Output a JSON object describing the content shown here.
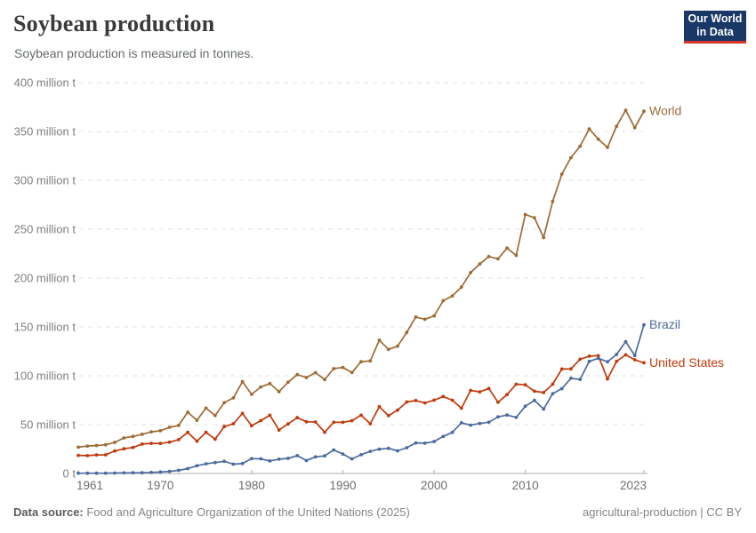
{
  "header": {
    "title": "Soybean production",
    "subtitle": "Soybean production is measured in tonnes.",
    "logo": {
      "line1": "Our World",
      "line2": "in Data"
    }
  },
  "footer": {
    "source_label": "Data source:",
    "source_text": "Food and Agriculture Organization of the United Nations (2025)",
    "rights": "agricultural-production | CC BY"
  },
  "colors": {
    "logo_background": "#1a3866",
    "logo_accent": "#d7352c",
    "grid": "#e0e0e0",
    "axis": "#adadad",
    "axis_text": "#7f7f7f",
    "title_text": "#3a3a3a",
    "subtitle_text": "#666b6e"
  },
  "chart_data": {
    "type": "line",
    "title": "Soybean production",
    "unit": "tonnes",
    "ylabel": "",
    "xlabel": "",
    "grid": "horizontal-dashed",
    "legend_position": "end-of-line-labels",
    "xlim": [
      1961,
      2023
    ],
    "ylim": [
      0,
      400
    ],
    "y_ticks": [
      {
        "value": 0,
        "label": "0 t"
      },
      {
        "value": 50,
        "label": "50 million t"
      },
      {
        "value": 100,
        "label": "100 million t"
      },
      {
        "value": 150,
        "label": "150 million t"
      },
      {
        "value": 200,
        "label": "200 million t"
      },
      {
        "value": 250,
        "label": "250 million t"
      },
      {
        "value": 300,
        "label": "300 million t"
      },
      {
        "value": 350,
        "label": "350 million t"
      },
      {
        "value": 400,
        "label": "400 million t"
      }
    ],
    "x_ticks": [
      {
        "value": 1961,
        "label": "1961"
      },
      {
        "value": 1970,
        "label": "1970"
      },
      {
        "value": 1980,
        "label": "1980"
      },
      {
        "value": 1990,
        "label": "1990"
      },
      {
        "value": 2000,
        "label": "2000"
      },
      {
        "value": 2010,
        "label": "2010"
      },
      {
        "value": 2023,
        "label": "2023"
      }
    ],
    "x": [
      1961,
      1962,
      1963,
      1964,
      1965,
      1966,
      1967,
      1968,
      1969,
      1970,
      1971,
      1972,
      1973,
      1974,
      1975,
      1976,
      1977,
      1978,
      1979,
      1980,
      1981,
      1982,
      1983,
      1984,
      1985,
      1986,
      1987,
      1988,
      1989,
      1990,
      1991,
      1992,
      1993,
      1994,
      1995,
      1996,
      1997,
      1998,
      1999,
      2000,
      2001,
      2002,
      2003,
      2004,
      2005,
      2006,
      2007,
      2008,
      2009,
      2010,
      2011,
      2012,
      2013,
      2014,
      2015,
      2016,
      2017,
      2018,
      2019,
      2020,
      2021,
      2022,
      2023
    ],
    "value_unit": "million tonnes",
    "series": [
      {
        "id": "world",
        "label": "World",
        "color": "#9D6B34",
        "values": [
          26.9,
          28.1,
          28.6,
          29.4,
          31.8,
          36.4,
          37.9,
          40.1,
          42.6,
          43.7,
          47.3,
          49.2,
          62.7,
          54.5,
          66.9,
          59.3,
          72.5,
          77.4,
          93.9,
          81.0,
          88.5,
          92.0,
          83.7,
          93.4,
          101.2,
          98.2,
          103.2,
          96.1,
          107.3,
          108.5,
          103.3,
          114.5,
          115.2,
          136.5,
          127.0,
          130.3,
          144.4,
          160.1,
          157.8,
          161.3,
          176.8,
          181.7,
          190.7,
          205.5,
          214.4,
          222.0,
          219.6,
          230.6,
          223.2,
          265.0,
          261.6,
          241.4,
          278.4,
          306.4,
          323.2,
          334.9,
          352.6,
          342.1,
          333.7,
          355.4,
          371.7,
          353.8,
          370.7
        ]
      },
      {
        "id": "united-states",
        "label": "United States",
        "color": "#BF3A0D",
        "values": [
          18.5,
          18.3,
          19.0,
          19.1,
          23.0,
          25.3,
          26.6,
          30.1,
          30.8,
          30.7,
          32.0,
          34.6,
          42.1,
          33.1,
          42.1,
          35.1,
          48.0,
          50.9,
          61.5,
          48.8,
          54.1,
          59.6,
          44.5,
          50.7,
          57.1,
          52.9,
          52.7,
          42.2,
          52.4,
          52.4,
          54.1,
          59.6,
          50.9,
          68.4,
          59.2,
          64.8,
          73.2,
          74.6,
          72.2,
          75.1,
          78.7,
          75.0,
          66.8,
          85.0,
          83.5,
          87.0,
          72.9,
          80.7,
          91.4,
          90.7,
          84.2,
          82.8,
          91.4,
          106.9,
          107.0,
          116.9,
          120.1,
          120.5,
          96.7,
          114.7,
          121.5,
          116.4,
          113.3
        ]
      },
      {
        "id": "brazil",
        "label": "Brazil",
        "color": "#4C6A9C",
        "values": [
          0.3,
          0.3,
          0.3,
          0.3,
          0.5,
          0.6,
          0.7,
          0.7,
          1.1,
          1.5,
          2.1,
          3.2,
          5.0,
          7.9,
          9.9,
          11.2,
          12.5,
          9.5,
          10.2,
          15.2,
          15.0,
          12.8,
          14.6,
          15.5,
          18.3,
          13.3,
          17.0,
          18.0,
          24.1,
          19.9,
          14.9,
          19.2,
          22.6,
          24.9,
          25.7,
          23.2,
          26.4,
          31.3,
          31.0,
          32.7,
          37.9,
          42.1,
          51.9,
          49.5,
          51.2,
          52.5,
          57.9,
          59.8,
          57.4,
          68.8,
          74.8,
          65.9,
          81.7,
          86.8,
          97.5,
          96.3,
          114.7,
          117.9,
          114.3,
          121.8,
          134.9,
          120.7,
          152.1
        ]
      }
    ]
  }
}
